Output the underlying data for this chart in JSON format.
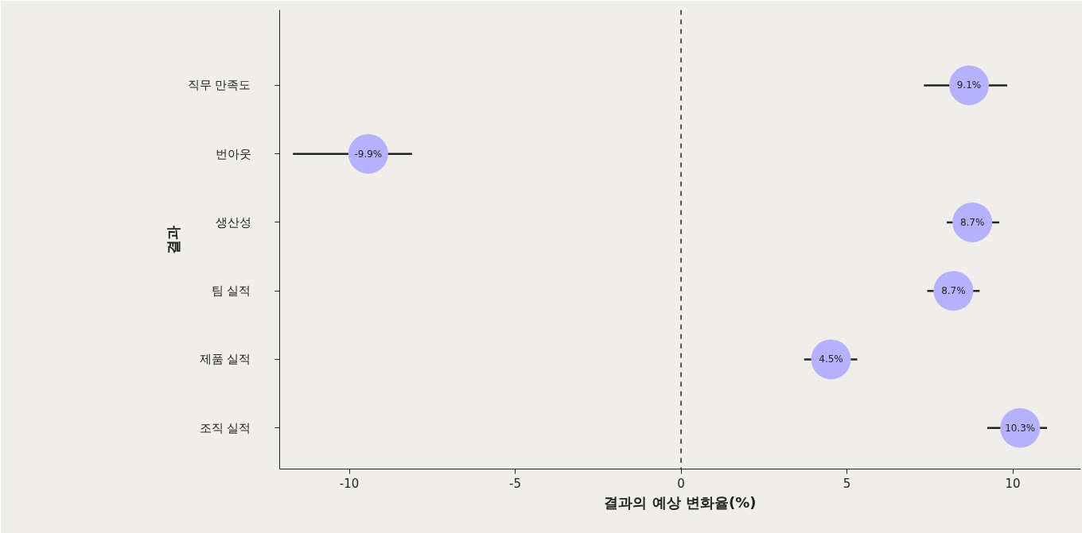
{
  "chart_data": {
    "type": "scatter",
    "xlabel": "결과의 예상 변화율(%)",
    "ylabel": "결과",
    "categories": [
      "직무 만족도",
      "번아웃",
      "생산성",
      "팀 실적",
      "제품 실적",
      "조직 실적"
    ],
    "series": [
      {
        "color": "#b7b0fc",
        "values": [
          8.68,
          -9.43,
          8.78,
          8.21,
          4.52,
          10.22
        ],
        "errors": [
          [
            7.32,
            9.83
          ],
          [
            -11.7,
            -8.11
          ],
          [
            8.01,
            9.59
          ],
          [
            7.42,
            9.0
          ],
          [
            3.71,
            5.31
          ],
          [
            9.23,
            11.03
          ]
        ]
      }
    ],
    "annotations": [
      {
        "text": "9.1%",
        "x": 8.68,
        "y": "직무 만족도"
      },
      {
        "text": "-9.9%",
        "x": -9.43,
        "y": "번아웃"
      },
      {
        "text": "8.7%",
        "x": 8.78,
        "y": "생산성"
      },
      {
        "text": "8.7%",
        "x": 8.21,
        "y": "팀 실적"
      },
      {
        "text": "4.5%",
        "x": 4.52,
        "y": "제품 실적"
      },
      {
        "text": "10.3%",
        "x": 10.22,
        "y": "조직 실적"
      }
    ],
    "orientation": "horizontal",
    "xlim": [
      -12.1,
      12.05
    ],
    "xticks": [
      -10,
      -5,
      0,
      5,
      10
    ],
    "ref_lines": [
      {
        "axis": "x",
        "value": 0,
        "color": "#222222",
        "line_style": "dashed"
      }
    ],
    "marker": "circle",
    "grid": false
  }
}
